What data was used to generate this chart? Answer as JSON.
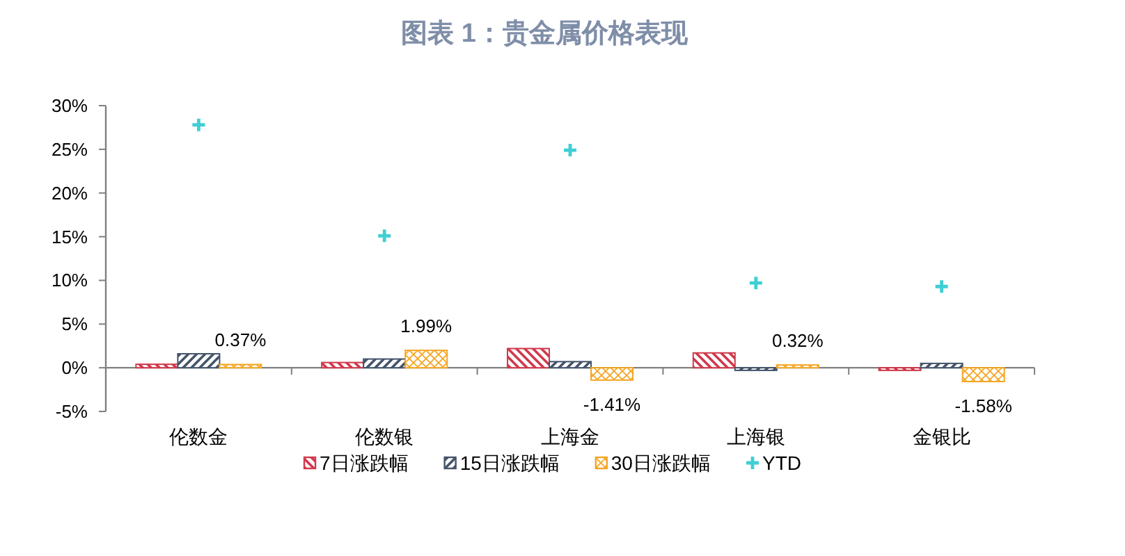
{
  "chart_data": {
    "type": "bar",
    "title": "图表 1：贵金属价格表现",
    "categories": [
      "伦数金",
      "伦数银",
      "上海金",
      "上海银",
      "金银比"
    ],
    "ylim": [
      -5,
      30
    ],
    "yticks": [
      {
        "value": -5,
        "label": "-5%"
      },
      {
        "value": 0,
        "label": "0%"
      },
      {
        "value": 5,
        "label": "5%"
      },
      {
        "value": 10,
        "label": "10%"
      },
      {
        "value": 15,
        "label": "15%"
      },
      {
        "value": 20,
        "label": "20%"
      },
      {
        "value": 25,
        "label": "25%"
      },
      {
        "value": 30,
        "label": "30%"
      }
    ],
    "legend": "bottom",
    "series": [
      {
        "name": "7日涨跌幅",
        "color": "#d0394b",
        "values": [
          0.4,
          0.6,
          2.2,
          1.7,
          -0.3
        ]
      },
      {
        "name": "15日涨跌幅",
        "color": "#44546a",
        "values": [
          1.6,
          1.0,
          0.7,
          -0.3,
          0.5
        ]
      },
      {
        "name": "30日涨跌幅",
        "color": "#f5a623",
        "values": [
          0.37,
          1.99,
          -1.41,
          0.32,
          -1.58
        ],
        "value_labels": [
          "0.37%",
          "1.99%",
          "-1.41%",
          "0.32%",
          "-1.58%"
        ]
      },
      {
        "name": "YTD",
        "type": "scatter",
        "marker": "cross",
        "color": "#3ecfd4",
        "values": [
          27.8,
          15.1,
          24.9,
          9.7,
          9.3
        ]
      }
    ]
  }
}
